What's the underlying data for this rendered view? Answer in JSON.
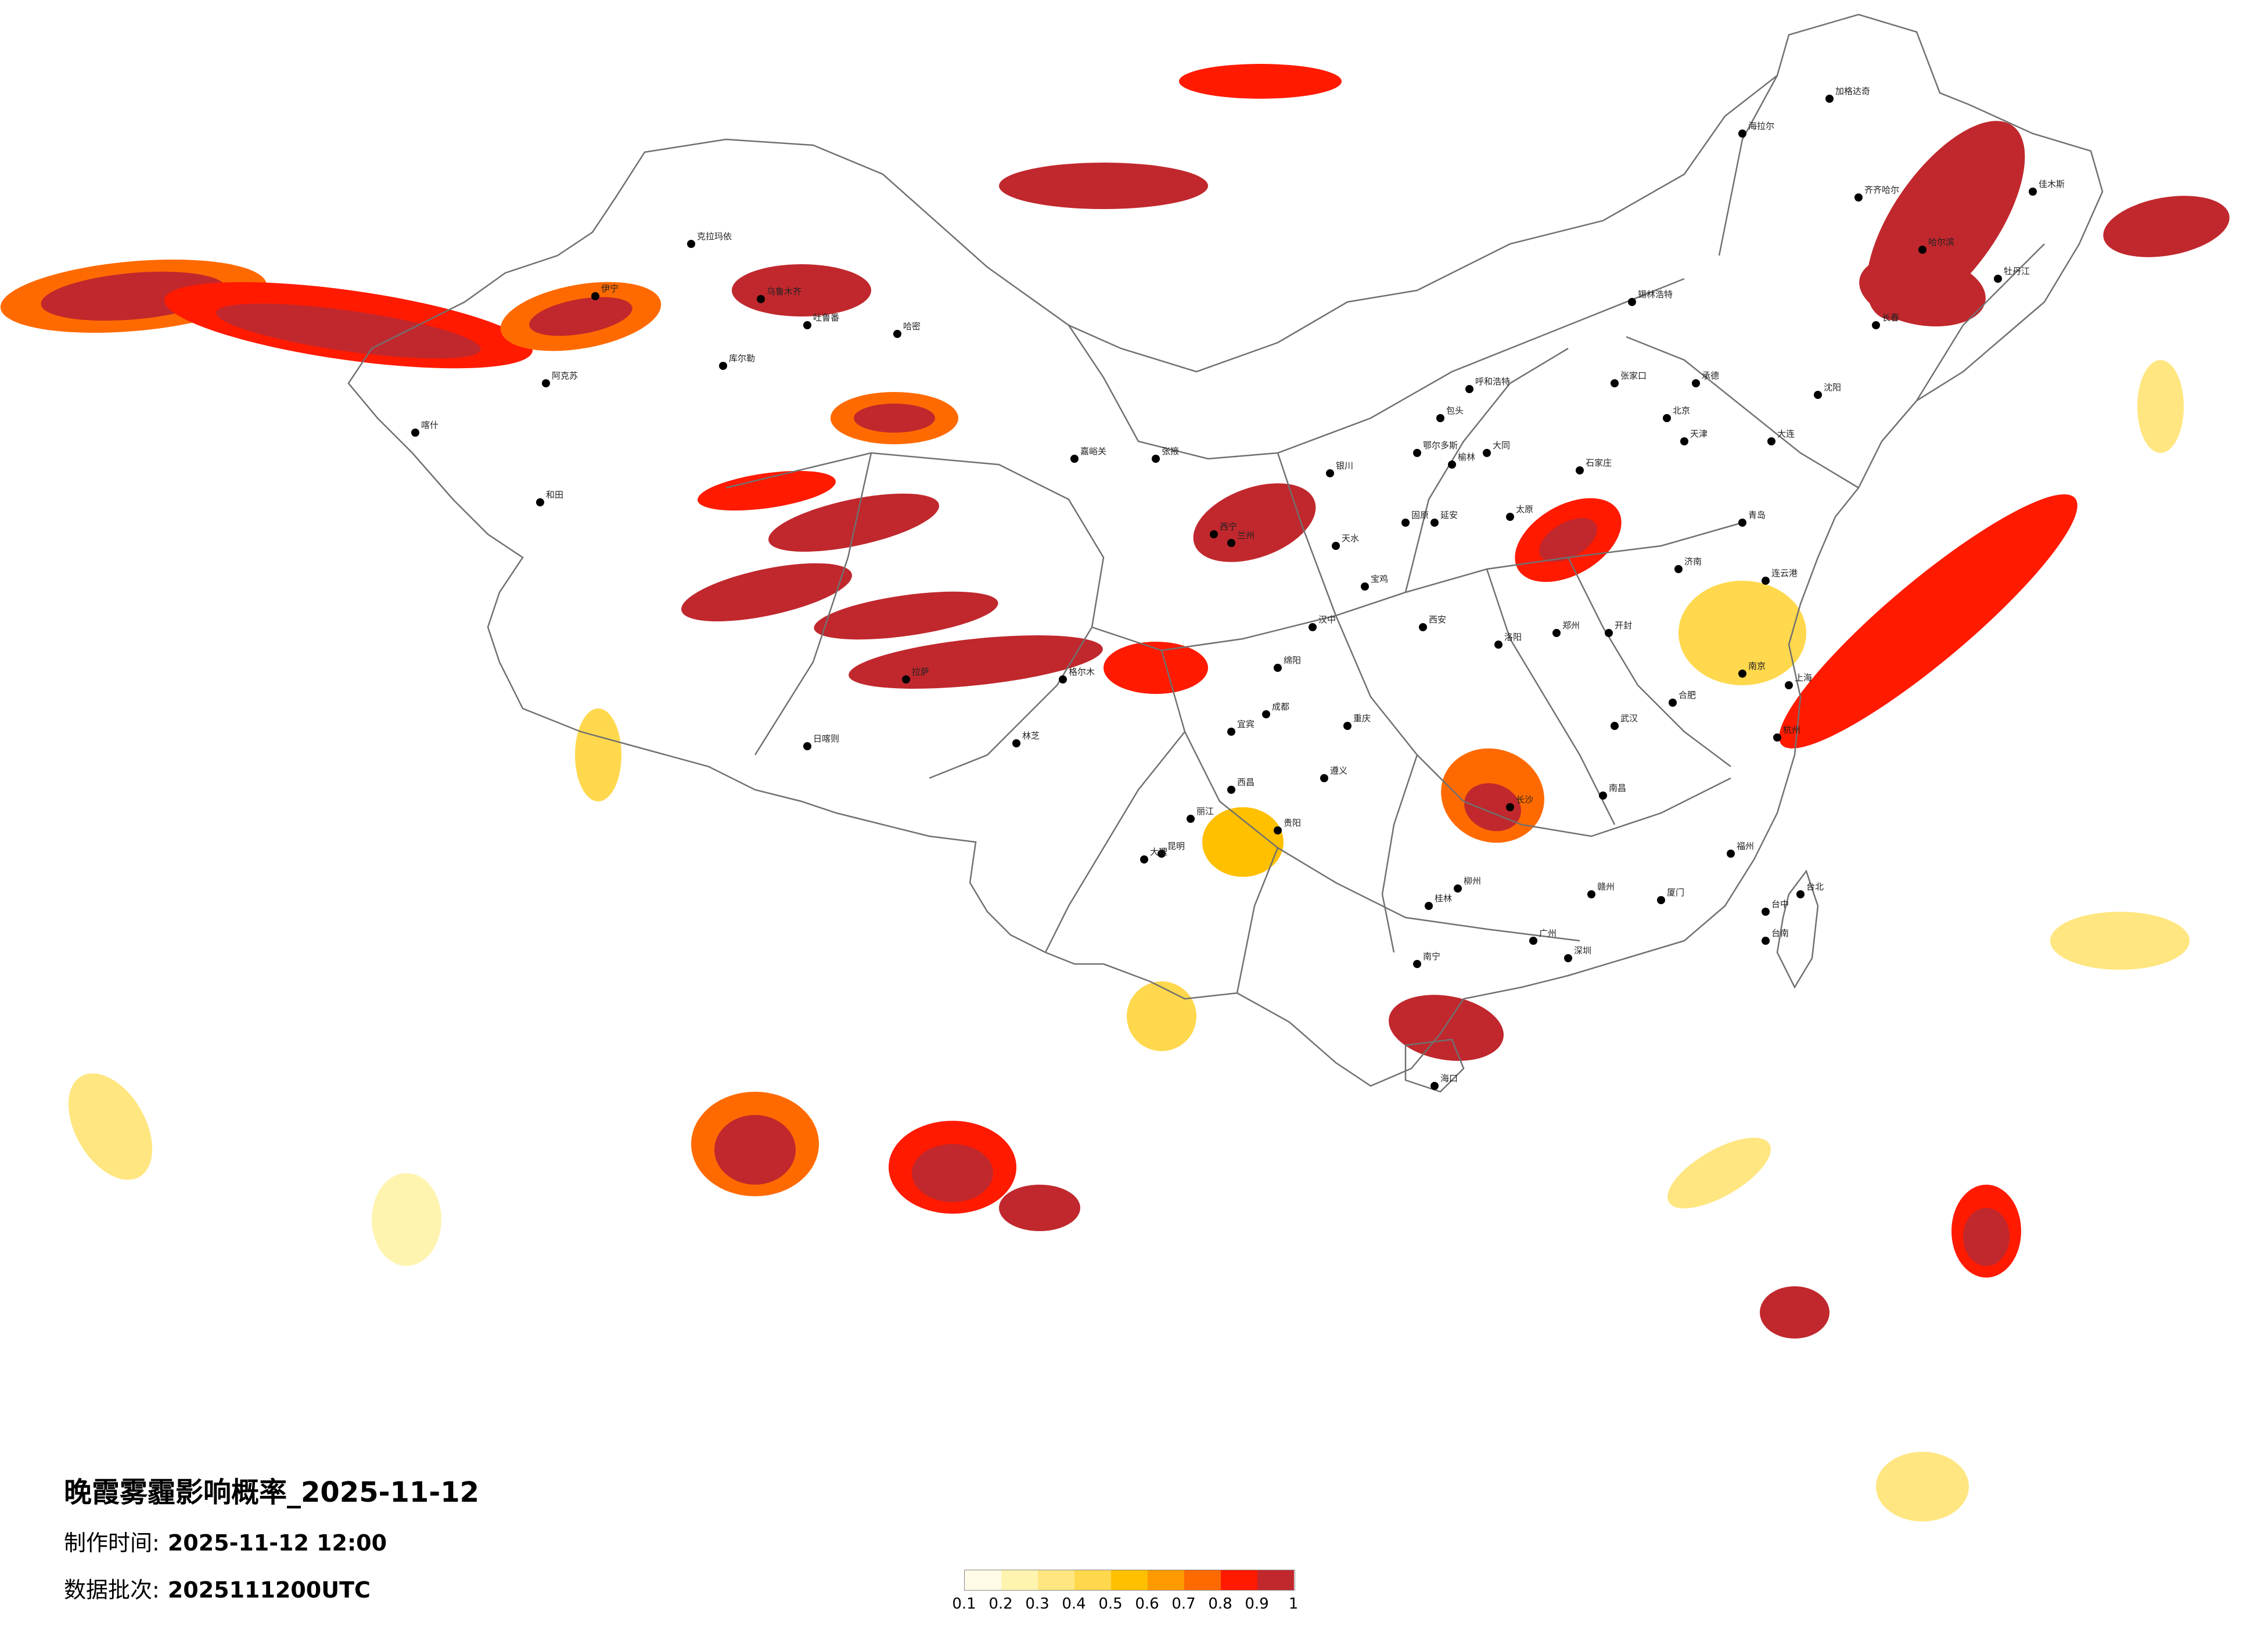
{
  "map": {
    "title": "晚霞雾霾影响概率_2025-11-12",
    "production_time_label": "制作时间:",
    "production_time": "2025-11-12 12:00",
    "batch_label": "数据批次:",
    "batch": "2025111200UTC"
  },
  "legend": {
    "ticks": [
      "0.1",
      "0.2",
      "0.3",
      "0.4",
      "0.5",
      "0.6",
      "0.7",
      "0.8",
      "0.9",
      "1"
    ],
    "colors": [
      "#fffbe6",
      "#fff3b0",
      "#ffe680",
      "#ffd84d",
      "#ffc000",
      "#ff9a00",
      "#ff6a00",
      "#ff1a00",
      "#c0282d"
    ]
  },
  "cities": [
    {
      "name": "克拉玛依"
    },
    {
      "name": "伊宁"
    },
    {
      "name": "乌鲁木齐"
    },
    {
      "name": "吐鲁番"
    },
    {
      "name": "哈密"
    },
    {
      "name": "库尔勒"
    },
    {
      "name": "阿克苏"
    },
    {
      "name": "喀什"
    },
    {
      "name": "和田"
    },
    {
      "name": "嘉峪关"
    },
    {
      "name": "张掖"
    },
    {
      "name": "西宁"
    },
    {
      "name": "格尔木"
    },
    {
      "name": "拉萨"
    },
    {
      "name": "日喀则"
    },
    {
      "name": "林芝"
    },
    {
      "name": "兰州"
    },
    {
      "name": "银川"
    },
    {
      "name": "呼和浩特"
    },
    {
      "name": "包头"
    },
    {
      "name": "鄂尔多斯"
    },
    {
      "name": "西安"
    },
    {
      "name": "延安"
    },
    {
      "name": "太原"
    },
    {
      "name": "北京"
    },
    {
      "name": "天津"
    },
    {
      "name": "石家庄"
    },
    {
      "name": "张家口"
    },
    {
      "name": "承德"
    },
    {
      "name": "济南"
    },
    {
      "name": "青岛"
    },
    {
      "name": "郑州"
    },
    {
      "name": "开封"
    },
    {
      "name": "洛阳"
    },
    {
      "name": "武汉"
    },
    {
      "name": "长沙"
    },
    {
      "name": "南昌"
    },
    {
      "name": "合肥"
    },
    {
      "name": "南京"
    },
    {
      "name": "上海"
    },
    {
      "name": "杭州"
    },
    {
      "name": "福州"
    },
    {
      "name": "厦门"
    },
    {
      "name": "广州"
    },
    {
      "name": "深圳"
    },
    {
      "name": "南宁"
    },
    {
      "name": "海口"
    },
    {
      "name": "贵阳"
    },
    {
      "name": "昆明"
    },
    {
      "name": "成都"
    },
    {
      "name": "重庆"
    },
    {
      "name": "沈阳"
    },
    {
      "name": "大连"
    },
    {
      "name": "长春"
    },
    {
      "name": "哈尔滨"
    },
    {
      "name": "齐齐哈尔"
    },
    {
      "name": "海拉尔"
    },
    {
      "name": "加格达奇"
    },
    {
      "name": "锡林浩特"
    },
    {
      "name": "台北"
    },
    {
      "name": "台中"
    },
    {
      "name": "台南"
    },
    {
      "name": "牡丹江"
    },
    {
      "name": "佳木斯"
    },
    {
      "name": "连云港"
    },
    {
      "name": "赣州"
    },
    {
      "name": "桂林"
    },
    {
      "name": "柳州"
    },
    {
      "name": "大理"
    },
    {
      "name": "丽江"
    },
    {
      "name": "西昌"
    },
    {
      "name": "遵义"
    },
    {
      "name": "宜宾"
    },
    {
      "name": "绵阳"
    },
    {
      "name": "汉中"
    },
    {
      "name": "宝鸡"
    },
    {
      "name": "天水"
    },
    {
      "name": "固原"
    },
    {
      "name": "榆林"
    },
    {
      "name": "大同"
    }
  ]
}
